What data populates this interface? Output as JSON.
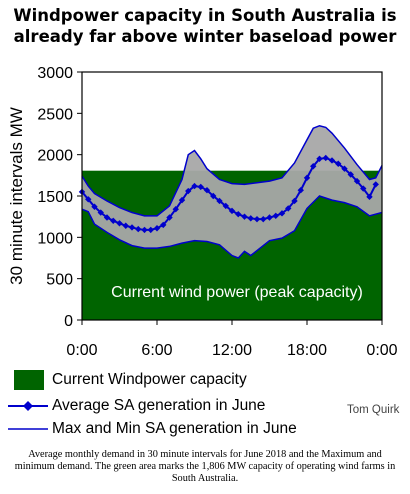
{
  "title_line1": "Windpower capacity in South Australia is",
  "title_line2": "already far above winter baseload power",
  "colors": {
    "wind_area": "#006400",
    "minmax_band": "#a8a8a8",
    "line": "#0000cc",
    "marker": "#0000cc",
    "frame": "#000000"
  },
  "chart_data": {
    "type": "area",
    "title": "Windpower capacity in South Australia is already far above winter baseload power",
    "ylabel": "30 minute intervals MW",
    "xlabel": "",
    "ylim": [
      0,
      3000
    ],
    "yticks": [
      "0",
      "500",
      "1000",
      "1500",
      "2000",
      "2500",
      "3000"
    ],
    "xlim": [
      0,
      24
    ],
    "xticks": [
      {
        "label": "0:00",
        "hour": 0
      },
      {
        "label": "6:00",
        "hour": 6
      },
      {
        "label": "12:00",
        "hour": 12
      },
      {
        "label": "18:00",
        "hour": 18
      },
      {
        "label": "0:00",
        "hour": 24
      }
    ],
    "wind_capacity_mw": 1806,
    "wind_area_label": "Current wind power (peak capacity)",
    "series": [
      {
        "name": "Average SA generation in June",
        "style": "line-diamond",
        "x": [
          0,
          0.5,
          1,
          1.5,
          2,
          2.5,
          3,
          3.5,
          4,
          4.5,
          5,
          5.5,
          6,
          6.5,
          7,
          7.5,
          8,
          8.5,
          9,
          9.5,
          10,
          10.5,
          11,
          11.5,
          12,
          12.5,
          13,
          13.5,
          14,
          14.5,
          15,
          15.5,
          16,
          16.5,
          17,
          17.5,
          18,
          18.5,
          19,
          19.5,
          20,
          20.5,
          21,
          21.5,
          22,
          22.5,
          23,
          23.5
        ],
        "values": [
          1550,
          1460,
          1370,
          1300,
          1240,
          1200,
          1170,
          1140,
          1120,
          1100,
          1090,
          1090,
          1110,
          1150,
          1240,
          1340,
          1450,
          1560,
          1620,
          1610,
          1570,
          1500,
          1440,
          1380,
          1320,
          1280,
          1250,
          1230,
          1220,
          1220,
          1240,
          1260,
          1290,
          1350,
          1440,
          1570,
          1720,
          1860,
          1950,
          1960,
          1930,
          1890,
          1830,
          1760,
          1680,
          1590,
          1490,
          1640
        ]
      },
      {
        "name": "Max and Min SA generation in June",
        "style": "line",
        "max": {
          "x": [
            0,
            0.5,
            1,
            2,
            3,
            4,
            5,
            6,
            7,
            8,
            8.5,
            9,
            9.5,
            10,
            11,
            12,
            13,
            14,
            15,
            16,
            17,
            18,
            18.5,
            19,
            19.5,
            20,
            21,
            22,
            23,
            23.5,
            24
          ],
          "values": [
            1740,
            1620,
            1530,
            1440,
            1360,
            1300,
            1260,
            1260,
            1380,
            1700,
            2000,
            2050,
            1950,
            1830,
            1700,
            1650,
            1640,
            1660,
            1680,
            1720,
            1900,
            2180,
            2320,
            2350,
            2330,
            2260,
            2080,
            1880,
            1700,
            1720,
            1870
          ]
        },
        "min": {
          "x": [
            0,
            0.5,
            1,
            2,
            3,
            4,
            5,
            6,
            7,
            8,
            9,
            10,
            11,
            12,
            12.5,
            13,
            13.5,
            14,
            15,
            16,
            17,
            18,
            19,
            20,
            21,
            22,
            23,
            24
          ],
          "values": [
            1340,
            1310,
            1160,
            1060,
            970,
            900,
            870,
            870,
            890,
            930,
            960,
            950,
            910,
            780,
            750,
            830,
            780,
            840,
            960,
            990,
            1080,
            1350,
            1500,
            1450,
            1420,
            1370,
            1260,
            1300
          ]
        }
      }
    ],
    "legend": [
      {
        "label": "Current Windpower capacity",
        "kind": "box"
      },
      {
        "label": "Average SA generation in June",
        "kind": "line-diamond"
      },
      {
        "label": "Max and Min SA generation in June",
        "kind": "line"
      }
    ],
    "grid": false,
    "legend_placement": "bottom"
  },
  "author": "Tom Quirk",
  "caption": "Average monthly demand in 30 minute intervals for June 2018 and the Maximum and minimum demand. The green area marks the 1,806 MW capacity of operating wind farms in South Australia."
}
